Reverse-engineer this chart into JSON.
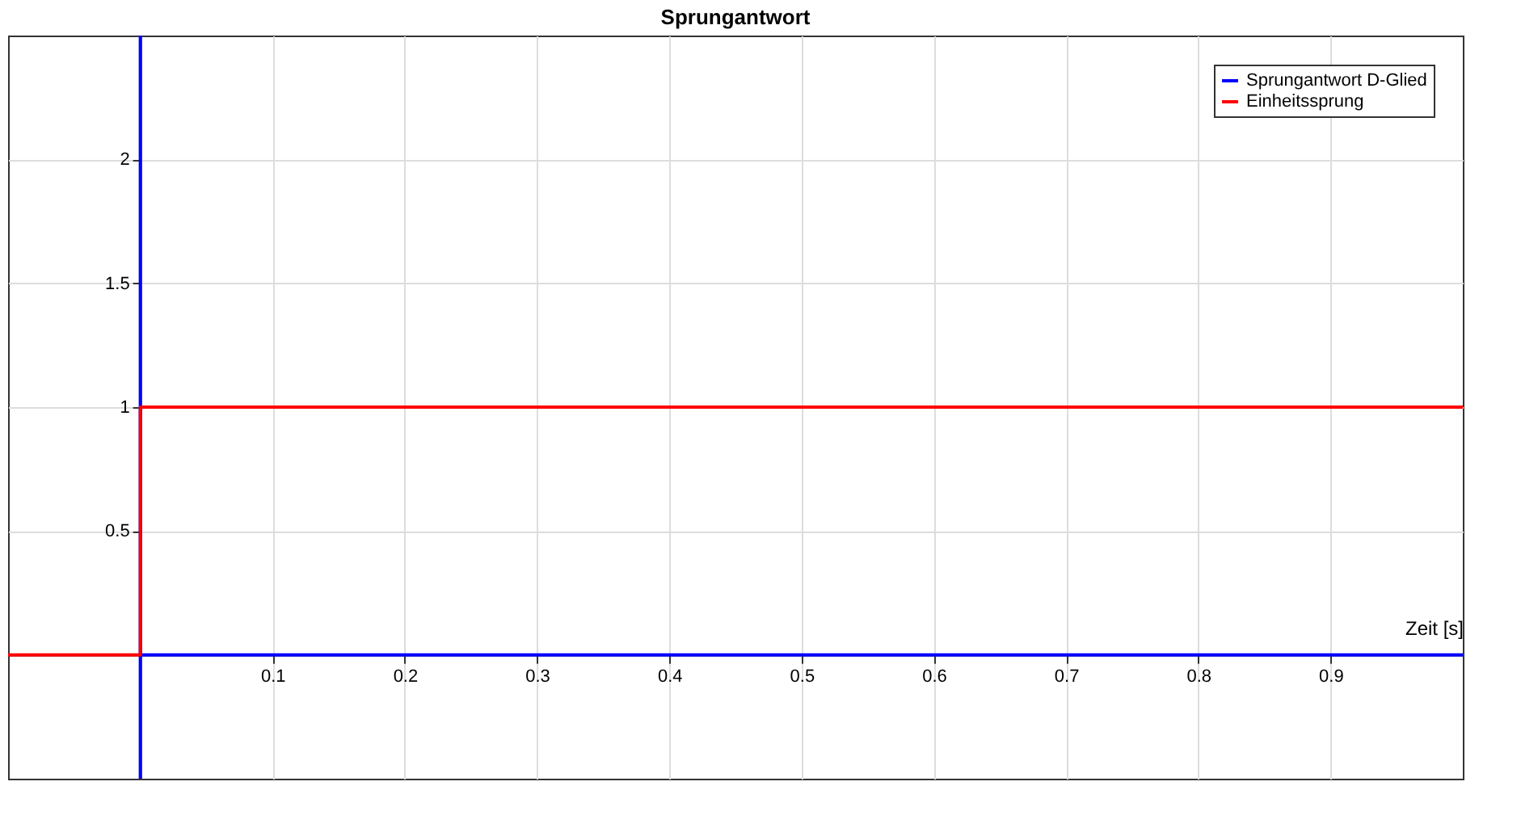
{
  "chart_data": {
    "type": "line",
    "title": "Sprungantwort",
    "xlabel": "Zeit [s]",
    "series": [
      {
        "name": "Sprungantwort D-Glied",
        "color": "#0000ff",
        "x": [
          0,
          0,
          0,
          1
        ],
        "values": [
          -0.5,
          2.5,
          0,
          0
        ]
      },
      {
        "name": "Einheitssprung",
        "color": "#ff0000",
        "x": [
          -0.1,
          0,
          0,
          1
        ],
        "values": [
          0,
          0,
          1,
          1
        ]
      }
    ],
    "xlim": [
      -0.1,
      1
    ],
    "ylim": [
      -0.5,
      2.5
    ],
    "xticks": [
      0.1,
      0.2,
      0.3,
      0.4,
      0.5,
      0.6,
      0.7,
      0.8,
      0.9
    ],
    "yticks": [
      0.5,
      1,
      1.5,
      2
    ],
    "grid": true,
    "legend": "top right",
    "marker": "none",
    "line_style": "solid"
  }
}
